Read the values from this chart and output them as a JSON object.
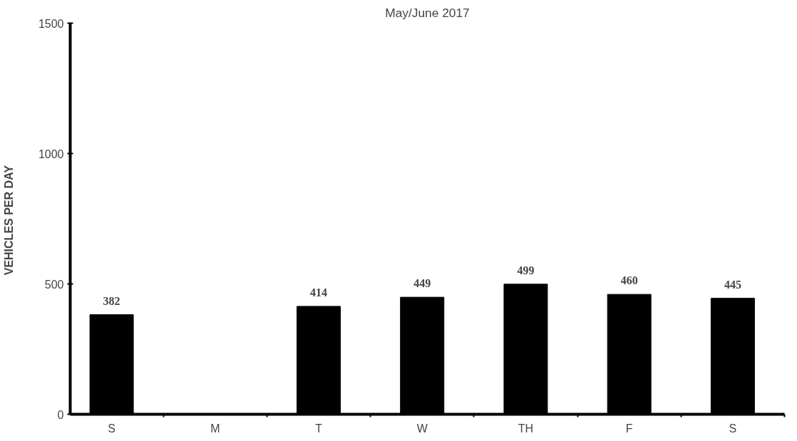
{
  "chart_data": {
    "type": "bar",
    "title": "May/June 2017",
    "ylabel": "VEHICLES  PER DAY",
    "categories": [
      "S",
      "M",
      "T",
      "W",
      "TH",
      "F",
      "S"
    ],
    "values": [
      382,
      null,
      414,
      449,
      499,
      460,
      445
    ],
    "color": "#000000",
    "ylim": [
      0,
      1500
    ],
    "yticks": [
      0,
      500,
      1000,
      1500
    ],
    "data_labels": true,
    "grid": false
  }
}
